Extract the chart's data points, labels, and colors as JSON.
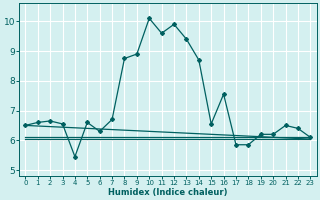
{
  "xlabel": "Humidex (Indice chaleur)",
  "bg_color": "#d4f0f0",
  "grid_color": "#ffffff",
  "line_color": "#006060",
  "xlim": [
    -0.5,
    23.5
  ],
  "ylim": [
    4.8,
    10.6
  ],
  "yticks": [
    5,
    6,
    7,
    8,
    9,
    10
  ],
  "xticks": [
    0,
    1,
    2,
    3,
    4,
    5,
    6,
    7,
    8,
    9,
    10,
    11,
    12,
    13,
    14,
    15,
    16,
    17,
    18,
    19,
    20,
    21,
    22,
    23
  ],
  "series_main_x": [
    0,
    1,
    2,
    3,
    4,
    5,
    6,
    7,
    8,
    9,
    10,
    11,
    12,
    13,
    14,
    15,
    16,
    17,
    18,
    19,
    20,
    21,
    22,
    23
  ],
  "series_main_y": [
    6.5,
    6.6,
    6.65,
    6.55,
    5.45,
    6.6,
    6.3,
    6.7,
    8.75,
    8.9,
    10.1,
    9.6,
    9.9,
    9.4,
    8.7,
    6.55,
    7.55,
    5.85,
    5.85,
    6.2,
    6.2,
    6.5,
    6.4,
    6.1
  ],
  "series_flat1_x": [
    0,
    1,
    2,
    3,
    4,
    5,
    6,
    7,
    8,
    9,
    10,
    11,
    12,
    13,
    14,
    15,
    16,
    17,
    18,
    19,
    20,
    21,
    22,
    23
  ],
  "series_flat1_y": [
    6.5,
    6.48,
    6.46,
    6.44,
    6.42,
    6.4,
    6.38,
    6.36,
    6.34,
    6.32,
    6.3,
    6.28,
    6.26,
    6.24,
    6.22,
    6.2,
    6.18,
    6.16,
    6.14,
    6.12,
    6.1,
    6.08,
    6.06,
    6.04
  ],
  "series_flat2_x": [
    0,
    1,
    2,
    3,
    4,
    5,
    6,
    7,
    8,
    9,
    10,
    11,
    12,
    13,
    14,
    15,
    16,
    17,
    18,
    19,
    20,
    21,
    22,
    23
  ],
  "series_flat2_y": [
    6.1,
    6.1,
    6.1,
    6.1,
    6.1,
    6.1,
    6.1,
    6.1,
    6.1,
    6.1,
    6.1,
    6.1,
    6.1,
    6.1,
    6.1,
    6.1,
    6.1,
    6.1,
    6.1,
    6.1,
    6.1,
    6.1,
    6.1,
    6.1
  ],
  "series_flat3_x": [
    0,
    1,
    2,
    3,
    4,
    5,
    6,
    7,
    8,
    9,
    10,
    11,
    12,
    13,
    14,
    15,
    16,
    17,
    18,
    19,
    20,
    21,
    22,
    23
  ],
  "series_flat3_y": [
    6.05,
    6.05,
    6.05,
    6.05,
    6.05,
    6.05,
    6.05,
    6.05,
    6.05,
    6.05,
    6.05,
    6.05,
    6.05,
    6.05,
    6.05,
    6.05,
    6.05,
    6.05,
    6.05,
    6.05,
    6.05,
    6.05,
    6.05,
    6.05
  ],
  "marker": "D",
  "markersize": 2.0,
  "linewidth": 0.9,
  "xlabel_fontsize": 6.0,
  "tick_fontsize_x": 5.0,
  "tick_fontsize_y": 6.5
}
